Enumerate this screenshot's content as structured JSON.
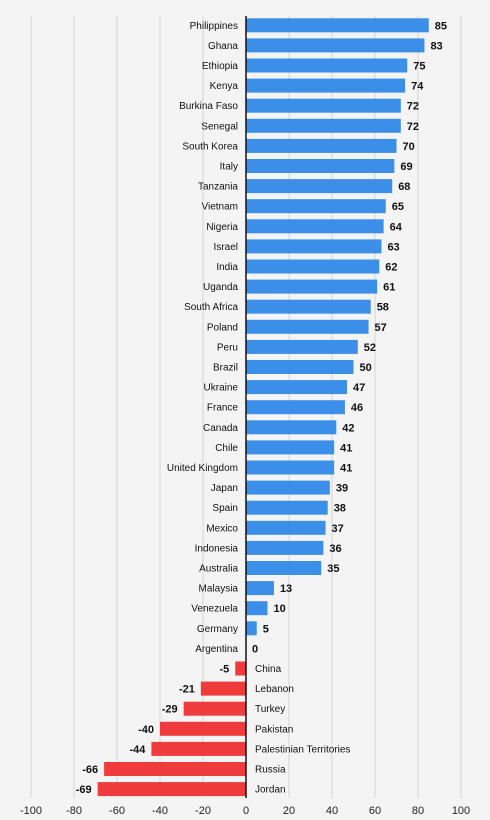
{
  "chart_data": {
    "type": "bar",
    "orientation": "horizontal",
    "title": "",
    "xlabel": "",
    "ylabel": "",
    "xlim": [
      -100,
      100
    ],
    "x_ticks": [
      -100,
      -80,
      -60,
      -40,
      -20,
      0,
      20,
      40,
      60,
      80,
      100
    ],
    "grid": "vertical",
    "colors": {
      "positive": "#3b8fe8",
      "negative": "#ef3b3b",
      "grid": "#d3d3d3",
      "axis": "#111111"
    },
    "categories": [
      "Philippines",
      "Ghana",
      "Ethiopia",
      "Kenya",
      "Burkina Faso",
      "Senegal",
      "South Korea",
      "Italy",
      "Tanzania",
      "Vietnam",
      "Nigeria",
      "Israel",
      "India",
      "Uganda",
      "South Africa",
      "Poland",
      "Peru",
      "Brazil",
      "Ukraine",
      "France",
      "Canada",
      "Chile",
      "United Kingdom",
      "Japan",
      "Spain",
      "Mexico",
      "Indonesia",
      "Australia",
      "Malaysia",
      "Venezuela",
      "Germany",
      "Argentina",
      "China",
      "Lebanon",
      "Turkey",
      "Pakistan",
      "Palestinian Territories",
      "Russia",
      "Jordan"
    ],
    "values": [
      85,
      83,
      75,
      74,
      72,
      72,
      70,
      69,
      68,
      65,
      64,
      63,
      62,
      61,
      58,
      57,
      52,
      50,
      47,
      46,
      42,
      41,
      41,
      39,
      38,
      37,
      36,
      35,
      13,
      10,
      5,
      0,
      -5,
      -21,
      -29,
      -40,
      -44,
      -66,
      -69
    ]
  }
}
